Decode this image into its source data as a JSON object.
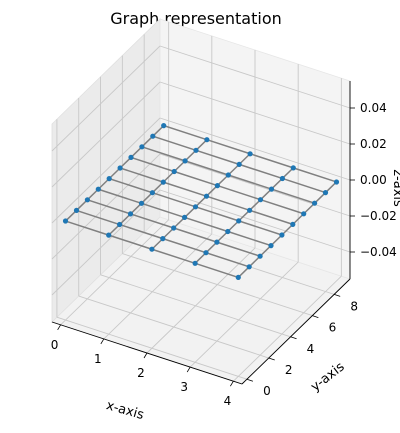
{
  "chart_data": {
    "type": "scatter",
    "projection": "3d",
    "title": "Graph representation",
    "xlabel": "x-axis",
    "ylabel": "y-axis",
    "zlabel": "z-axis",
    "xlim": [
      -0.2,
      4.2
    ],
    "ylim": [
      -0.45,
      9.45
    ],
    "zlim": [
      -0.055,
      0.055
    ],
    "x_ticks": [
      "0",
      "1",
      "2",
      "3",
      "4"
    ],
    "y_ticks": [
      "0",
      "2",
      "4",
      "6",
      "8"
    ],
    "z_ticks": [
      "−0.04",
      "−0.02",
      "0.00",
      "0.02",
      "0.04"
    ],
    "grid": true,
    "z_plane": 0,
    "node_color": "#1f77b4",
    "edge_color": "#808080",
    "grid_nodes_x": [
      0,
      1,
      2,
      3,
      4
    ],
    "grid_nodes_y": [
      0,
      1,
      2,
      3,
      4,
      5,
      6,
      7,
      8,
      9
    ],
    "edges": "lattice: every node linked to its x and y neighbours"
  }
}
